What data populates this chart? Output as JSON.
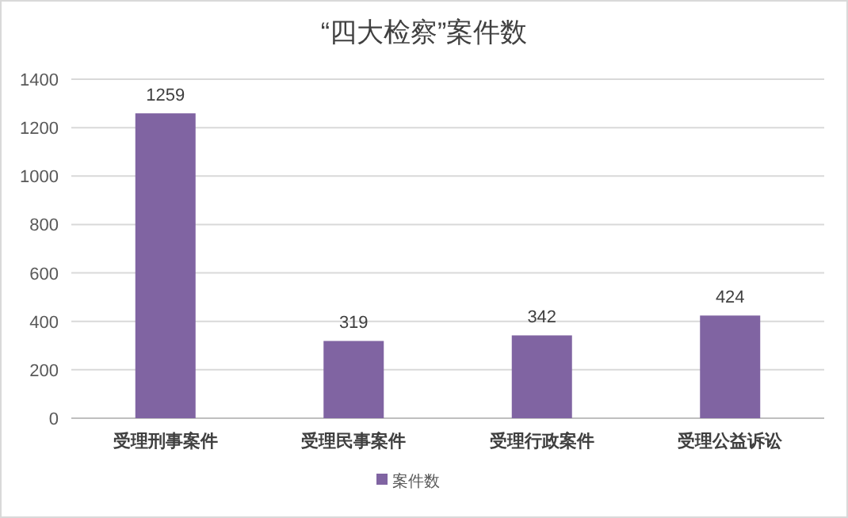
{
  "chart_data": {
    "type": "bar",
    "title": "“四大检察”案件数",
    "categories": [
      "受理刑事案件",
      "受理民事案件",
      "受理行政案件",
      "受理公益诉讼"
    ],
    "series": [
      {
        "name": "案件数",
        "color": "#8064a2",
        "values": [
          1259,
          319,
          342,
          424
        ]
      }
    ],
    "ylim": [
      0,
      1400
    ],
    "yticks": [
      0,
      200,
      400,
      600,
      800,
      1000,
      1200,
      1400
    ],
    "grid": "y",
    "legend": "bottom",
    "data_labels": true
  }
}
